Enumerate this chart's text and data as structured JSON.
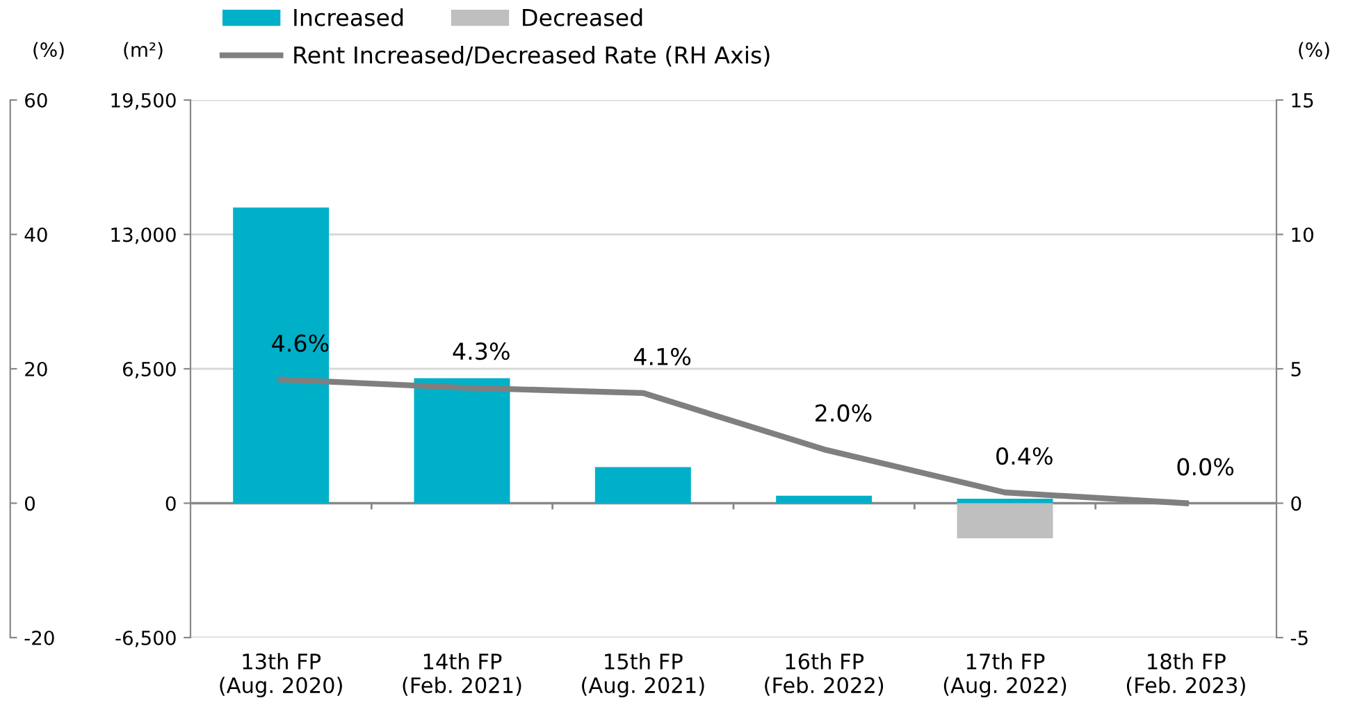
{
  "chart_data": {
    "type": "bar",
    "stacked": true,
    "categories": [
      "13th FP\n(Aug. 2020)",
      "14th FP\n(Feb. 2021)",
      "15th FP\n(Aug. 2021)",
      "16th FP\n(Feb. 2022)",
      "17th FP\n(Aug. 2022)",
      "18th FP\n(Feb. 2023)"
    ],
    "series": [
      {
        "name": "Increased",
        "color": "#00b0c8",
        "values": [
          14300,
          6050,
          1750,
          360,
          220,
          0
        ]
      },
      {
        "name": "Decreased",
        "color": "#bfbfbf",
        "values": [
          0,
          0,
          0,
          0,
          -1700,
          0
        ]
      },
      {
        "name": "Rent Increased/Decreased Rate (RH Axis)",
        "type": "line",
        "axis": "y2",
        "color": "#7f7f7f",
        "values": [
          4.6,
          4.3,
          4.1,
          2.0,
          0.4,
          0.0
        ],
        "value_labels": [
          "4.6%",
          "4.3%",
          "4.1%",
          "2.0%",
          "0.4%",
          "0.0%"
        ]
      }
    ],
    "ylabel": "(m²)",
    "y2label": "(%)",
    "y3label": "(%)",
    "ylim": [
      -6500,
      19500
    ],
    "yticks": [
      {
        "value": -6500,
        "label": "-6,500"
      },
      0,
      {
        "value": 6500,
        "label": "6,500"
      },
      {
        "value": 13000,
        "label": "13,000"
      },
      {
        "value": 19500,
        "label": "19,500"
      }
    ],
    "y2lim": [
      -5,
      15
    ],
    "y2ticks": [
      -5,
      0,
      5,
      10,
      15
    ],
    "y3lim": [
      -20,
      60
    ],
    "y3ticks": [
      -20,
      0,
      20,
      40,
      60
    ],
    "grid": "y",
    "legend": "top",
    "marker": "none",
    "line_style": "solid"
  }
}
